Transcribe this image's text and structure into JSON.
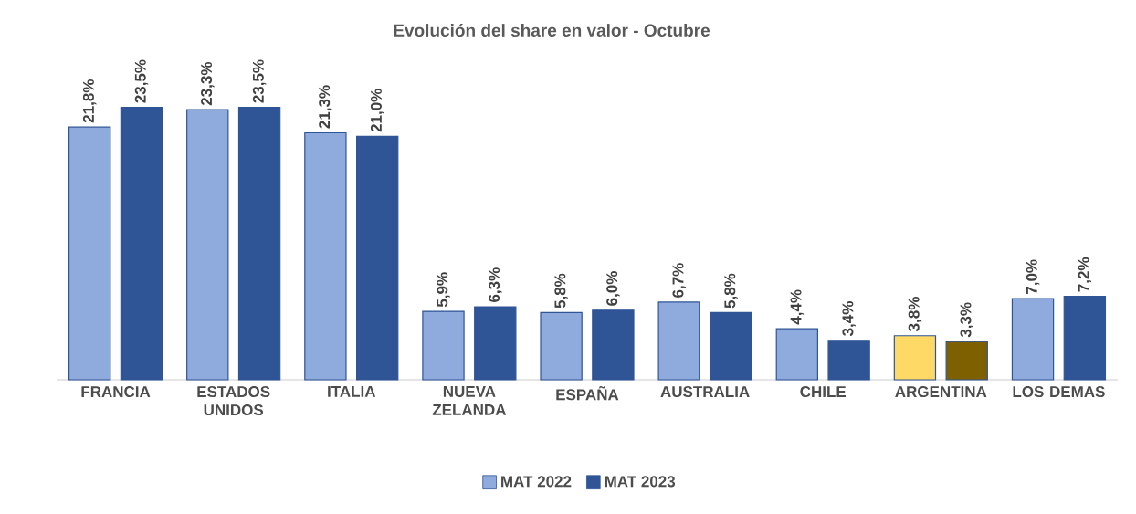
{
  "chart_data": {
    "type": "bar",
    "title": "Evolución del share en valor - Octubre",
    "categories": [
      "FRANCIA",
      "ESTADOS UNIDOS",
      "ITALIA",
      "NUEVA ZELANDA",
      "ESPAÑA",
      "AUSTRALIA",
      "CHILE",
      "ARGENTINA",
      "LOS DEMAS"
    ],
    "series": [
      {
        "name": "MAT 2022",
        "color": "#8faadc",
        "colors": [
          "#8faadc",
          "#8faadc",
          "#8faadc",
          "#8faadc",
          "#8faadc",
          "#8faadc",
          "#8faadc",
          "#ffd966",
          "#8faadc"
        ],
        "values": [
          21.8,
          23.3,
          21.3,
          5.9,
          5.8,
          6.7,
          4.4,
          3.8,
          7.0
        ],
        "value_labels": [
          "21,8%",
          "23,3%",
          "21,3%",
          "5,9%",
          "5,8%",
          "6,7%",
          "4,4%",
          "3,8%",
          "7,0%"
        ]
      },
      {
        "name": "MAT 2023",
        "color": "#2f5597",
        "colors": [
          "#2f5597",
          "#2f5597",
          "#2f5597",
          "#2f5597",
          "#2f5597",
          "#2f5597",
          "#2f5597",
          "#7f6000",
          "#2f5597"
        ],
        "values": [
          23.5,
          23.5,
          21.0,
          6.3,
          6.0,
          5.8,
          3.4,
          3.3,
          7.2
        ],
        "value_labels": [
          "23,5%",
          "23,5%",
          "21,0%",
          "6,3%",
          "6,0%",
          "5,8%",
          "3,4%",
          "3,3%",
          "7,2%"
        ]
      }
    ],
    "legend": "bottom"
  }
}
